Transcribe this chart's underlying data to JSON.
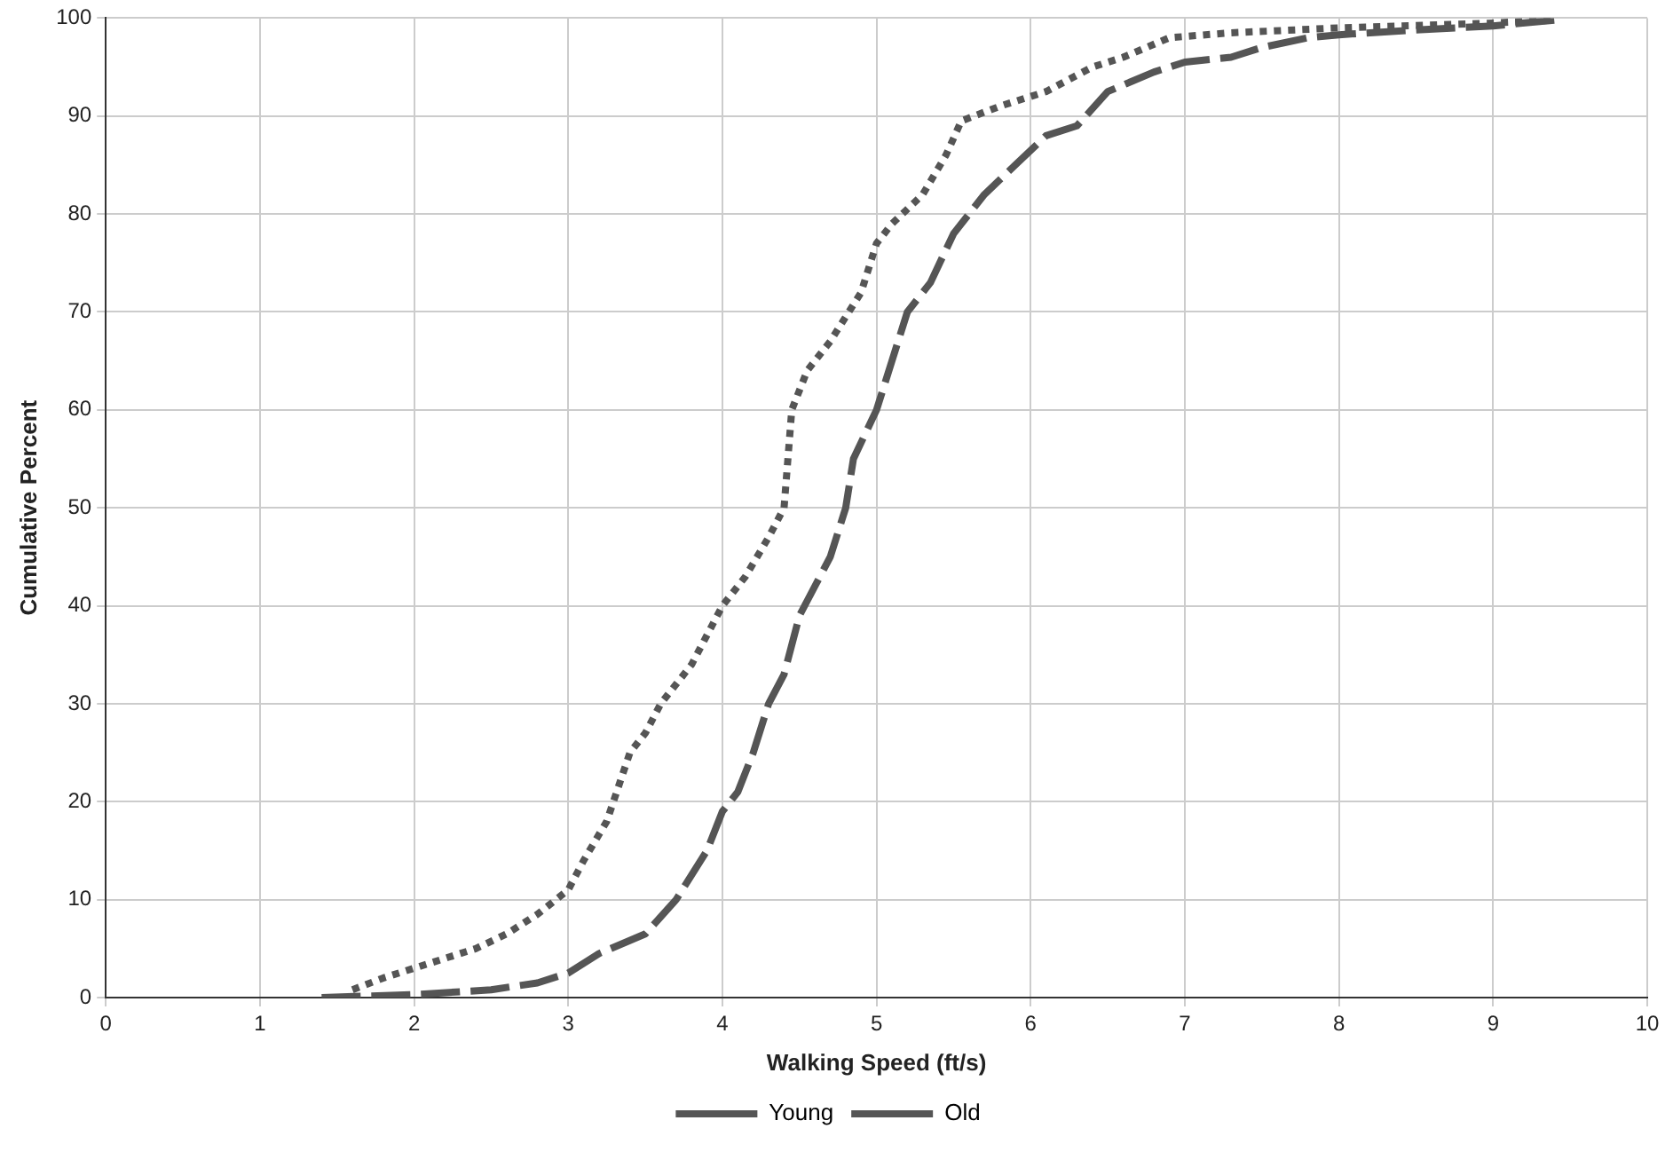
{
  "chart_data": {
    "type": "line",
    "xlabel": "Walking Speed (ft/s)",
    "ylabel": "Cumulative Percent",
    "xlim": [
      0,
      10
    ],
    "xticks": [
      0,
      1,
      2,
      3,
      4,
      5,
      6,
      7,
      8,
      9,
      10
    ],
    "ylim": [
      0,
      100
    ],
    "yticks": [
      0,
      10,
      20,
      30,
      40,
      50,
      60,
      70,
      80,
      90,
      100
    ],
    "grid": true,
    "legend": "bottom",
    "marker": "none",
    "series": [
      {
        "name": "Young",
        "color": "#555555",
        "line_style": "dashed",
        "x": [
          1.4,
          2,
          2.5,
          2.8,
          3,
          3.2,
          3.5,
          3.7,
          3.9,
          4,
          4.1,
          4.2,
          4.3,
          4.4,
          4.5,
          4.6,
          4.7,
          4.8,
          4.85,
          5,
          5.1,
          5.2,
          5.35,
          5.5,
          5.7,
          5.9,
          6.1,
          6.3,
          6.5,
          6.8,
          7,
          7.3,
          7.5,
          7.8,
          8,
          8.5,
          9,
          9.4
        ],
        "values": [
          0,
          0.3,
          0.8,
          1.5,
          2.5,
          4.5,
          6.5,
          10,
          15,
          19,
          21,
          25,
          30,
          33,
          39,
          42,
          45,
          50,
          55,
          60,
          65,
          70,
          73,
          78,
          82,
          85,
          88,
          89,
          92.5,
          94.5,
          95.5,
          96,
          97,
          98,
          98.3,
          98.8,
          99.2,
          99.8
        ]
      },
      {
        "name": "Old",
        "color": "#555555",
        "line_style": "dotted",
        "x": [
          1.6,
          1.8,
          2.1,
          2.4,
          2.6,
          2.8,
          3,
          3.1,
          3.25,
          3.4,
          3.5,
          3.6,
          3.8,
          4,
          4.15,
          4.3,
          4.4,
          4.45,
          4.55,
          4.7,
          4.9,
          5,
          5.1,
          5.3,
          5.45,
          5.55,
          5.8,
          6.1,
          6.4,
          6.6,
          6.9,
          7.3,
          8,
          9,
          9.4
        ],
        "values": [
          0.8,
          2,
          3.5,
          5,
          6.5,
          8.5,
          11,
          14,
          18,
          25,
          27,
          30,
          34,
          40,
          43,
          47,
          50,
          60,
          64,
          67,
          72,
          77,
          79,
          82,
          86,
          89.5,
          91,
          92.5,
          95,
          96,
          98,
          98.5,
          99,
          99.5,
          99.8
        ]
      }
    ]
  }
}
